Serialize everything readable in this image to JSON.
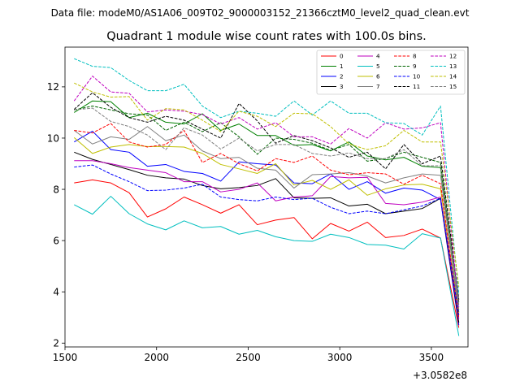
{
  "figure": {
    "suptitle": "Data file: modeM0/AS1A06_009T02_9000003152_21366cztM0_level2_quad_clean.evt"
  },
  "chart_data": {
    "type": "line",
    "title": "Quadrant 1 module wise count rates with 100.0s bins.",
    "xlabel": "",
    "ylabel": "",
    "x_offset_label": "+3.0582e8",
    "xlim": [
      1500,
      3700
    ],
    "ylim": [
      1.85,
      13.55
    ],
    "xticks": [
      1500,
      2000,
      2500,
      3000,
      3500
    ],
    "yticks": [
      2,
      4,
      6,
      8,
      10,
      12
    ],
    "legend_position": "top-right",
    "legend_ncol": 4,
    "x": [
      1550,
      1650,
      1750,
      1850,
      1950,
      2050,
      2150,
      2250,
      2350,
      2450,
      2550,
      2650,
      2750,
      2850,
      2950,
      3050,
      3150,
      3250,
      3350,
      3450,
      3550,
      3650
    ],
    "series": [
      {
        "name": "0",
        "color": "#ff0000",
        "dash": "solid",
        "values": [
          8.25,
          8.37,
          8.25,
          7.87,
          6.92,
          7.24,
          7.7,
          7.4,
          7.07,
          7.4,
          6.62,
          6.8,
          6.9,
          6.07,
          6.67,
          6.37,
          6.72,
          6.12,
          6.2,
          6.45,
          6.1,
          2.6
        ]
      },
      {
        "name": "1",
        "color": "#008000",
        "dash": "solid",
        "values": [
          11.0,
          11.45,
          11.42,
          10.8,
          10.97,
          10.62,
          10.55,
          10.95,
          10.3,
          10.55,
          10.1,
          10.1,
          9.72,
          9.75,
          9.5,
          9.85,
          9.3,
          9.15,
          9.25,
          8.9,
          8.85,
          3.2
        ]
      },
      {
        "name": "2",
        "color": "#0000ff",
        "dash": "solid",
        "values": [
          9.85,
          10.27,
          9.55,
          9.45,
          8.9,
          8.97,
          8.7,
          8.62,
          8.32,
          9.07,
          9.0,
          8.95,
          8.25,
          8.22,
          8.6,
          8.0,
          8.3,
          7.85,
          8.05,
          7.97,
          7.6,
          2.7
        ]
      },
      {
        "name": "3",
        "color": "#000000",
        "dash": "solid",
        "values": [
          9.45,
          9.17,
          8.97,
          8.77,
          8.55,
          8.45,
          8.4,
          8.15,
          8.02,
          8.07,
          8.15,
          8.42,
          7.67,
          7.65,
          7.67,
          7.35,
          7.42,
          7.05,
          7.15,
          7.25,
          7.65,
          2.8
        ]
      },
      {
        "name": "4",
        "color": "#bf00bf",
        "dash": "solid",
        "values": [
          9.12,
          9.12,
          9.0,
          8.85,
          8.75,
          8.65,
          8.3,
          8.3,
          7.9,
          8.0,
          8.25,
          7.55,
          7.7,
          7.75,
          8.5,
          8.45,
          8.47,
          7.45,
          7.4,
          7.5,
          7.7,
          2.95
        ]
      },
      {
        "name": "5",
        "color": "#00bfbf",
        "dash": "solid",
        "values": [
          7.4,
          7.03,
          7.73,
          7.05,
          6.65,
          6.42,
          6.77,
          6.5,
          6.55,
          6.25,
          6.4,
          6.15,
          6.0,
          5.97,
          6.25,
          6.12,
          5.85,
          5.82,
          5.67,
          6.27,
          6.1,
          2.28
        ]
      },
      {
        "name": "6",
        "color": "#bfbf00",
        "dash": "solid",
        "values": [
          10.02,
          9.4,
          9.65,
          9.75,
          9.67,
          9.67,
          9.65,
          9.4,
          8.97,
          8.8,
          8.62,
          9.0,
          8.17,
          8.35,
          8.0,
          8.37,
          7.77,
          8.02,
          8.17,
          8.2,
          8.02,
          3.1
        ]
      },
      {
        "name": "7",
        "color": "#808080",
        "dash": "solid",
        "values": [
          10.3,
          9.77,
          10.05,
          9.95,
          10.45,
          9.9,
          10.12,
          9.5,
          9.2,
          9.25,
          8.82,
          8.75,
          8.05,
          8.57,
          8.6,
          8.65,
          8.52,
          8.25,
          8.45,
          8.6,
          8.55,
          3.3
        ]
      },
      {
        "name": "8",
        "color": "#ff0000",
        "dash": "dashed",
        "values": [
          10.3,
          10.2,
          10.57,
          9.85,
          9.65,
          9.75,
          10.3,
          9.05,
          9.4,
          9.0,
          8.72,
          9.2,
          9.05,
          9.3,
          8.75,
          8.57,
          8.65,
          8.6,
          8.2,
          8.55,
          8.22,
          3.0
        ]
      },
      {
        "name": "9",
        "color": "#006400",
        "dash": "dashed",
        "values": [
          11.1,
          11.25,
          11.1,
          10.95,
          10.9,
          10.3,
          10.62,
          10.25,
          10.6,
          10.05,
          9.37,
          10.0,
          9.95,
          9.8,
          9.52,
          9.75,
          9.1,
          9.2,
          9.45,
          9.25,
          9.05,
          3.6
        ]
      },
      {
        "name": "10",
        "color": "#0000ff",
        "dash": "dashed",
        "values": [
          8.87,
          8.95,
          8.6,
          8.3,
          7.95,
          7.97,
          8.05,
          8.2,
          7.7,
          7.6,
          7.55,
          7.7,
          7.6,
          7.65,
          7.3,
          7.05,
          7.15,
          7.05,
          7.2,
          7.35,
          7.65,
          3.1
        ]
      },
      {
        "name": "11",
        "color": "#000000",
        "dash": "dashed",
        "values": [
          11.12,
          11.77,
          11.2,
          10.8,
          10.62,
          10.85,
          10.7,
          10.35,
          10.0,
          11.35,
          10.67,
          9.8,
          10.1,
          9.9,
          9.62,
          9.25,
          9.45,
          8.8,
          9.75,
          9.0,
          9.3,
          3.7
        ]
      },
      {
        "name": "12",
        "color": "#bf00bf",
        "dash": "dashed",
        "values": [
          11.45,
          12.42,
          11.8,
          11.75,
          11.02,
          11.1,
          11.05,
          10.92,
          10.55,
          10.8,
          10.35,
          10.6,
          10.05,
          10.05,
          9.77,
          10.37,
          10.0,
          10.6,
          10.35,
          10.4,
          10.6,
          3.4
        ]
      },
      {
        "name": "13",
        "color": "#00bfbf",
        "dash": "dashed",
        "values": [
          13.1,
          12.8,
          12.75,
          12.25,
          11.85,
          11.85,
          12.1,
          11.25,
          10.8,
          11.05,
          10.97,
          10.85,
          11.45,
          10.9,
          11.45,
          10.97,
          10.97,
          10.6,
          10.57,
          10.12,
          11.25,
          3.9
        ]
      },
      {
        "name": "14",
        "color": "#bfbf00",
        "dash": "dashed",
        "values": [
          12.15,
          11.8,
          11.6,
          11.62,
          10.7,
          11.15,
          11.1,
          10.7,
          10.25,
          11.05,
          10.85,
          10.45,
          10.97,
          10.95,
          10.45,
          9.77,
          9.55,
          9.7,
          10.3,
          9.85,
          9.85,
          4.2
        ]
      },
      {
        "name": "15",
        "color": "#808080",
        "dash": "dashed",
        "values": [
          11.1,
          11.17,
          10.65,
          10.45,
          10.12,
          9.55,
          10.4,
          10.12,
          9.57,
          10.0,
          9.5,
          9.75,
          9.75,
          9.4,
          9.3,
          9.42,
          9.2,
          9.2,
          9.55,
          8.92,
          8.92,
          3.5
        ]
      }
    ]
  }
}
